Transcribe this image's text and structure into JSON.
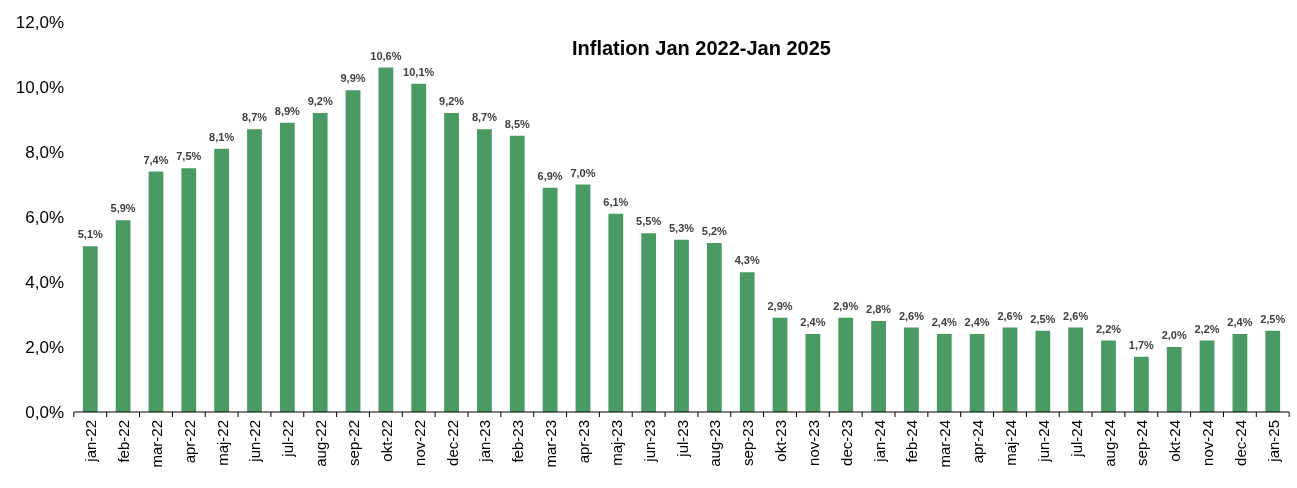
{
  "chart_data": {
    "type": "bar",
    "title": "Inflation Jan 2022-Jan 2025",
    "categories": [
      "jan-22",
      "feb-22",
      "mar-22",
      "apr-22",
      "maj-22",
      "jun-22",
      "jul-22",
      "aug-22",
      "sep-22",
      "okt-22",
      "nov-22",
      "dec-22",
      "jan-23",
      "feb-23",
      "mar-23",
      "apr-23",
      "maj-23",
      "jun-23",
      "jul-23",
      "aug-23",
      "sep-23",
      "okt-23",
      "nov-23",
      "dec-23",
      "jan-24",
      "feb-24",
      "mar-24",
      "apr-24",
      "maj-24",
      "jun-24",
      "jul-24",
      "aug-24",
      "sep-24",
      "okt-24",
      "nov-24",
      "dec-24",
      "jan-25"
    ],
    "values": [
      5.1,
      5.9,
      7.4,
      7.5,
      8.1,
      8.7,
      8.9,
      9.2,
      9.9,
      10.6,
      10.1,
      9.2,
      8.7,
      8.5,
      6.9,
      7.0,
      6.1,
      5.5,
      5.3,
      5.2,
      4.3,
      2.9,
      2.4,
      2.9,
      2.8,
      2.6,
      2.4,
      2.4,
      2.6,
      2.5,
      2.6,
      2.2,
      1.7,
      2.0,
      2.2,
      2.4,
      2.5
    ],
    "value_labels": [
      "5,1%",
      "5,9%",
      "7,4%",
      "7,5%",
      "8,1%",
      "8,7%",
      "8,9%",
      "9,2%",
      "9,9%",
      "10,6%",
      "10,1%",
      "9,2%",
      "8,7%",
      "8,5%",
      "6,9%",
      "7,0%",
      "6,1%",
      "5,5%",
      "5,3%",
      "5,2%",
      "4,3%",
      "2,9%",
      "2,4%",
      "2,9%",
      "2,8%",
      "2,6%",
      "2,4%",
      "2,4%",
      "2,6%",
      "2,5%",
      "2,6%",
      "2,2%",
      "1,7%",
      "2,0%",
      "2,2%",
      "2,4%",
      "2,5%"
    ],
    "color": "#4a9a64",
    "ylim": [
      0,
      12
    ],
    "yticks": [
      {
        "value": 0,
        "label": "0,0%"
      },
      {
        "value": 2,
        "label": "2,0%"
      },
      {
        "value": 4,
        "label": "4,0%"
      },
      {
        "value": 6,
        "label": "6,0%"
      },
      {
        "value": 8,
        "label": "8,0%"
      },
      {
        "value": 10,
        "label": "10,0%"
      },
      {
        "value": 12,
        "label": "12,0%"
      }
    ],
    "grid": false
  }
}
